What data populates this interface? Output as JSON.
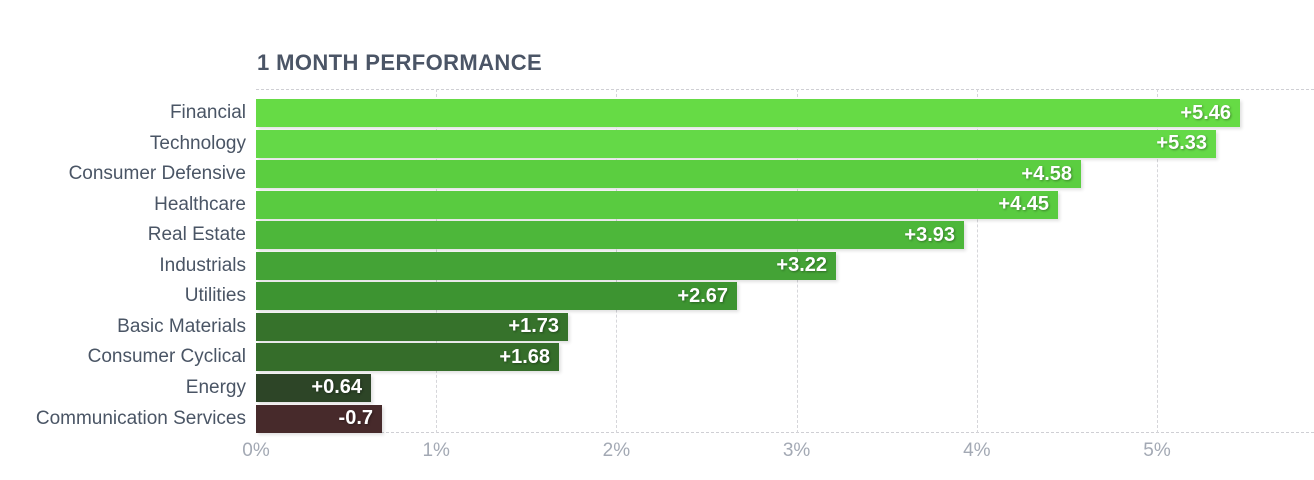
{
  "chart_data": {
    "type": "bar",
    "orientation": "horizontal",
    "title": "1 MONTH PERFORMANCE",
    "unit": "%",
    "categories": [
      "Financial",
      "Technology",
      "Consumer Defensive",
      "Healthcare",
      "Real Estate",
      "Industrials",
      "Utilities",
      "Basic Materials",
      "Consumer Cyclical",
      "Energy",
      "Communication Services"
    ],
    "values": [
      5.46,
      5.33,
      4.58,
      4.45,
      3.93,
      3.22,
      2.67,
      1.73,
      1.68,
      0.64,
      -0.7
    ],
    "value_labels": [
      "+5.46",
      "+5.33",
      "+4.58",
      "+4.45",
      "+3.93",
      "+3.22",
      "+2.67",
      "+1.73",
      "+1.68",
      "+0.64",
      "-0.7"
    ],
    "bar_colors": [
      "#66db45",
      "#64d947",
      "#5bce40",
      "#59cb40",
      "#4db73a",
      "#44a336",
      "#3d9431",
      "#36722b",
      "#356d2a",
      "#2d4527",
      "#472a2b"
    ],
    "x_ticks": [
      "0%",
      "1%",
      "2%",
      "3%",
      "4%",
      "5%"
    ],
    "x_tick_values": [
      0,
      1,
      2,
      3,
      4,
      5
    ],
    "xlim": [
      0,
      5.87
    ],
    "grid": "vertical-dashed",
    "legend": "none",
    "title_color": "#4b5566",
    "label_color": "#4a5565",
    "tick_color": "#a3a9b4",
    "value_text_color": "#ffffff"
  }
}
